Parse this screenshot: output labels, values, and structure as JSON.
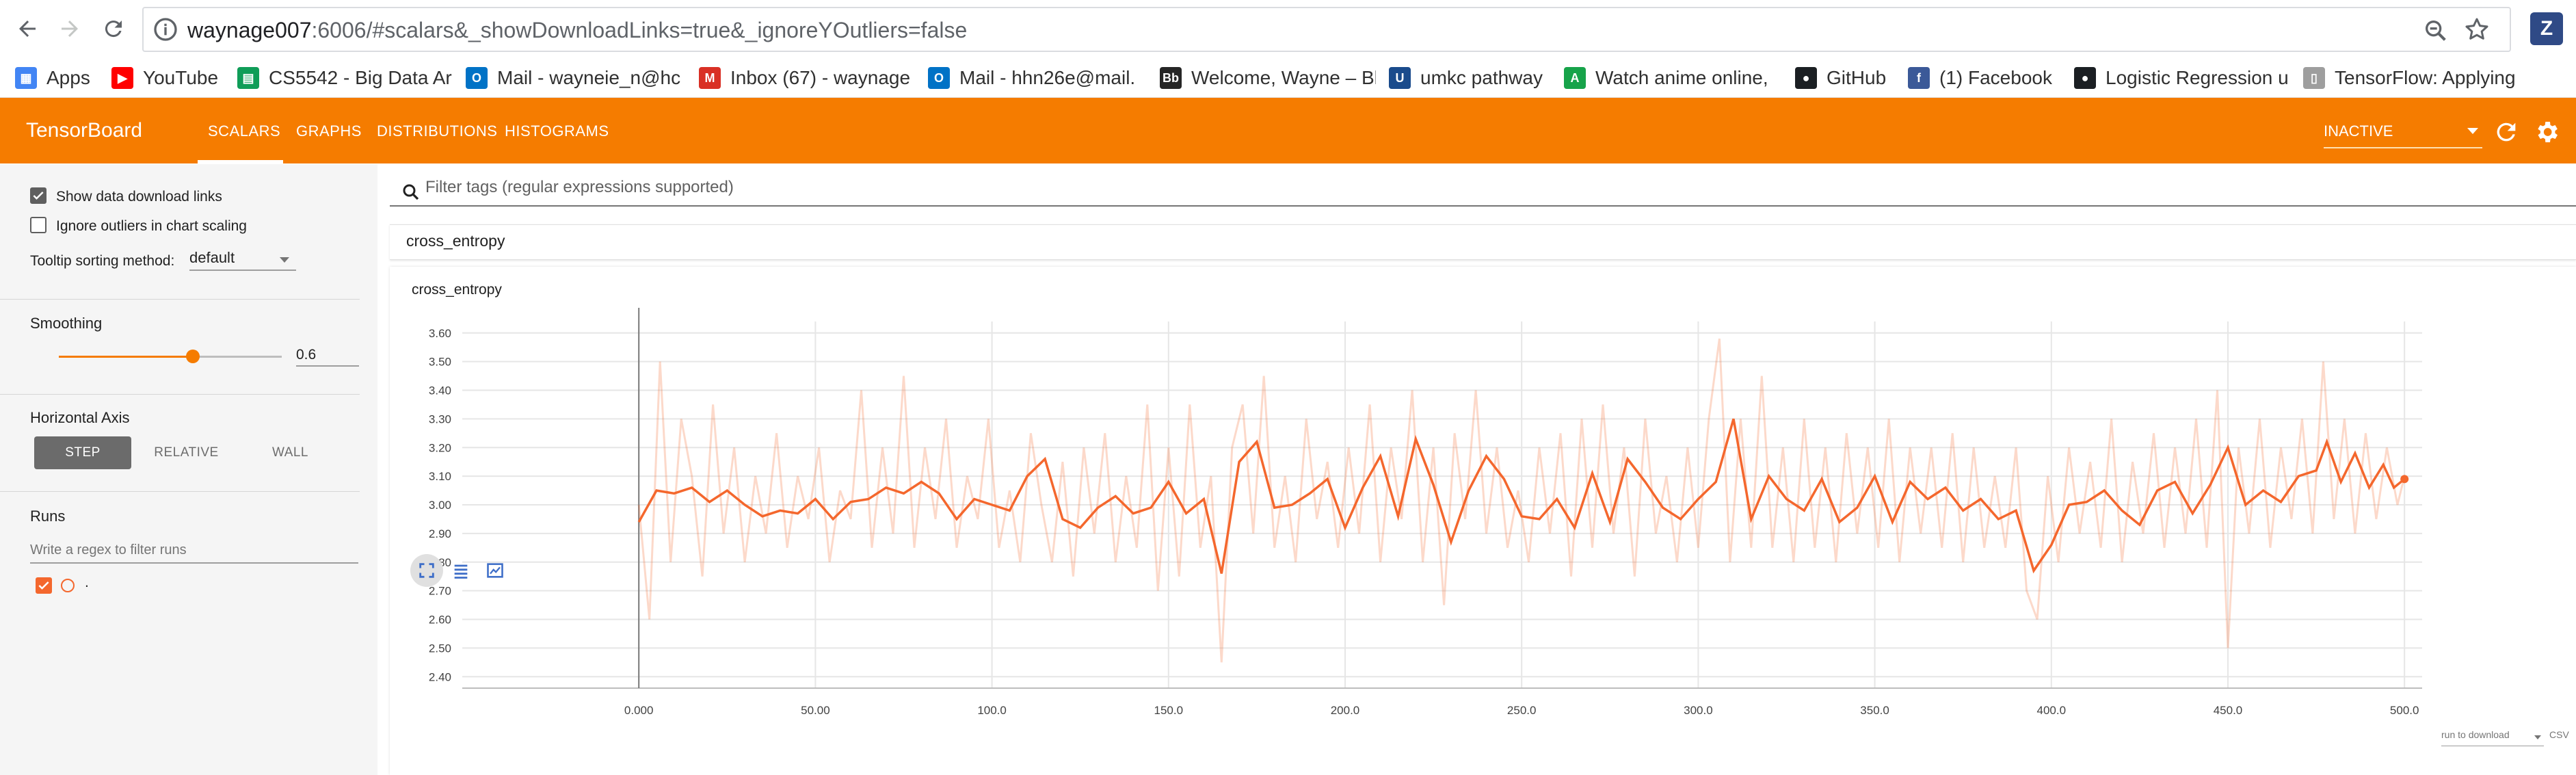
{
  "browser": {
    "url_host": "waynage007",
    "url_rest": ":6006/#scalars&_showDownloadLinks=true&_ignoreYOutliers=false",
    "extension_label": "Z",
    "bookmarks": [
      {
        "label": "Apps",
        "icon": "apps-grid-icon",
        "color": "#4285f4"
      },
      {
        "label": "YouTube",
        "icon": "youtube-icon",
        "color": "#ff0000"
      },
      {
        "label": "CS5542 - Big Data Ar",
        "icon": "sheets-icon",
        "color": "#0f9d58"
      },
      {
        "label": "Mail - wayneie_n@hc",
        "icon": "outlook-icon",
        "color": "#0072c6"
      },
      {
        "label": "Inbox (67) - waynage",
        "icon": "gmail-icon",
        "color": "#d93025"
      },
      {
        "label": "Mail - hhn26e@mail.",
        "icon": "outlook-icon",
        "color": "#0072c6"
      },
      {
        "label": "Welcome, Wayne – Bl",
        "icon": "blackboard-icon",
        "color": "#262626"
      },
      {
        "label": "umkc pathway",
        "icon": "umkc-icon",
        "color": "#1a4b8c"
      },
      {
        "label": "Watch anime online, ",
        "icon": "anime-site-icon",
        "color": "#17a34a"
      },
      {
        "label": "GitHub",
        "icon": "github-icon",
        "color": "#1b1f23"
      },
      {
        "label": "(1) Facebook",
        "icon": "facebook-icon",
        "color": "#3b5998"
      },
      {
        "label": "Logistic Regression u",
        "icon": "github-icon",
        "color": "#1b1f23"
      },
      {
        "label": "TensorFlow: Applying",
        "icon": "page-icon",
        "color": "#9e9e9e"
      }
    ]
  },
  "header": {
    "title": "TensorBoard",
    "tabs": [
      "SCALARS",
      "GRAPHS",
      "DISTRIBUTIONS",
      "HISTOGRAMS"
    ],
    "active_tab": "SCALARS",
    "run_status": "INACTIVE",
    "brand_color": "#f57c00"
  },
  "sidebar": {
    "show_download_links": {
      "label": "Show data download links",
      "checked": true
    },
    "ignore_outliers": {
      "label": "Ignore outliers in chart scaling",
      "checked": false
    },
    "tooltip_sorting": {
      "label": "Tooltip sorting method:",
      "value": "default"
    },
    "smoothing": {
      "label": "Smoothing",
      "value": "0.6",
      "fraction": 0.6
    },
    "horizontal_axis": {
      "label": "Horizontal Axis",
      "options": [
        "STEP",
        "RELATIVE",
        "WALL"
      ],
      "selected": "STEP"
    },
    "runs": {
      "label": "Runs",
      "filter_placeholder": "Write a regex to filter runs",
      "run_name": ".",
      "run_color": "#f4672d"
    }
  },
  "main": {
    "filter_placeholder": "Filter tags (regular expressions supported)",
    "category": "cross_entropy",
    "card_title": "cross_entropy",
    "download_select": "run to download",
    "download_format": "CSV"
  },
  "chart_data": {
    "type": "line",
    "title": "cross_entropy",
    "xlabel": "",
    "ylabel": "",
    "x_ticks": [
      "0.000",
      "50.00",
      "100.0",
      "150.0",
      "200.0",
      "250.0",
      "300.0",
      "350.0",
      "400.0",
      "450.0",
      "500.0"
    ],
    "y_ticks": [
      "2.40",
      "2.50",
      "2.60",
      "2.70",
      "2.80",
      "2.90",
      "3.00",
      "3.10",
      "3.20",
      "3.30",
      "3.40",
      "3.50",
      "3.60"
    ],
    "xlim": [
      -50,
      505
    ],
    "ylim": [
      2.36,
      3.64
    ],
    "grid": true,
    "series": [
      {
        "name": ".",
        "color": "#f4672d",
        "smoothed": [
          [
            0,
            2.94
          ],
          [
            5,
            3.05
          ],
          [
            10,
            3.04
          ],
          [
            15,
            3.06
          ],
          [
            20,
            3.01
          ],
          [
            25,
            3.05
          ],
          [
            30,
            3.0
          ],
          [
            35,
            2.96
          ],
          [
            40,
            2.98
          ],
          [
            45,
            2.97
          ],
          [
            50,
            3.02
          ],
          [
            55,
            2.95
          ],
          [
            60,
            3.01
          ],
          [
            65,
            3.02
          ],
          [
            70,
            3.06
          ],
          [
            75,
            3.04
          ],
          [
            80,
            3.08
          ],
          [
            85,
            3.04
          ],
          [
            90,
            2.95
          ],
          [
            95,
            3.02
          ],
          [
            100,
            3.0
          ],
          [
            105,
            2.98
          ],
          [
            110,
            3.1
          ],
          [
            115,
            3.16
          ],
          [
            120,
            2.95
          ],
          [
            125,
            2.92
          ],
          [
            130,
            2.99
          ],
          [
            135,
            3.03
          ],
          [
            140,
            2.97
          ],
          [
            145,
            2.99
          ],
          [
            150,
            3.08
          ],
          [
            155,
            2.97
          ],
          [
            160,
            3.02
          ],
          [
            165,
            2.76
          ],
          [
            170,
            3.15
          ],
          [
            175,
            3.22
          ],
          [
            180,
            2.99
          ],
          [
            185,
            3.0
          ],
          [
            190,
            3.04
          ],
          [
            195,
            3.09
          ],
          [
            200,
            2.92
          ],
          [
            205,
            3.06
          ],
          [
            210,
            3.17
          ],
          [
            215,
            2.96
          ],
          [
            220,
            3.23
          ],
          [
            225,
            3.07
          ],
          [
            230,
            2.87
          ],
          [
            235,
            3.05
          ],
          [
            240,
            3.17
          ],
          [
            245,
            3.09
          ],
          [
            250,
            2.96
          ],
          [
            255,
            2.95
          ],
          [
            260,
            3.02
          ],
          [
            265,
            2.92
          ],
          [
            270,
            3.11
          ],
          [
            275,
            2.94
          ],
          [
            280,
            3.16
          ],
          [
            285,
            3.08
          ],
          [
            290,
            2.99
          ],
          [
            295,
            2.95
          ],
          [
            300,
            3.02
          ],
          [
            305,
            3.08
          ],
          [
            310,
            3.3
          ],
          [
            315,
            2.95
          ],
          [
            320,
            3.1
          ],
          [
            325,
            3.02
          ],
          [
            330,
            2.98
          ],
          [
            335,
            3.09
          ],
          [
            340,
            2.94
          ],
          [
            345,
            2.99
          ],
          [
            350,
            3.1
          ],
          [
            355,
            2.94
          ],
          [
            360,
            3.08
          ],
          [
            365,
            3.02
          ],
          [
            370,
            3.06
          ],
          [
            375,
            2.98
          ],
          [
            380,
            3.02
          ],
          [
            385,
            2.95
          ],
          [
            390,
            2.98
          ],
          [
            395,
            2.77
          ],
          [
            400,
            2.86
          ],
          [
            405,
            3.0
          ],
          [
            410,
            3.01
          ],
          [
            415,
            3.05
          ],
          [
            420,
            2.98
          ],
          [
            425,
            2.93
          ],
          [
            430,
            3.05
          ],
          [
            435,
            3.08
          ],
          [
            440,
            2.97
          ],
          [
            445,
            3.07
          ],
          [
            450,
            3.2
          ],
          [
            455,
            3.0
          ],
          [
            460,
            3.05
          ],
          [
            465,
            3.01
          ],
          [
            470,
            3.1
          ],
          [
            475,
            3.12
          ],
          [
            478,
            3.22
          ],
          [
            482,
            3.08
          ],
          [
            486,
            3.18
          ],
          [
            490,
            3.06
          ],
          [
            494,
            3.14
          ],
          [
            497,
            3.06
          ],
          [
            500,
            3.09
          ]
        ],
        "raw": [
          [
            0,
            3.0
          ],
          [
            3,
            2.6
          ],
          [
            6,
            3.5
          ],
          [
            9,
            2.8
          ],
          [
            12,
            3.3
          ],
          [
            15,
            3.1
          ],
          [
            18,
            2.75
          ],
          [
            21,
            3.35
          ],
          [
            24,
            2.9
          ],
          [
            27,
            3.2
          ],
          [
            30,
            2.8
          ],
          [
            33,
            3.1
          ],
          [
            36,
            2.9
          ],
          [
            39,
            3.25
          ],
          [
            42,
            2.85
          ],
          [
            45,
            3.1
          ],
          [
            48,
            2.95
          ],
          [
            51,
            3.2
          ],
          [
            54,
            2.8
          ],
          [
            57,
            3.05
          ],
          [
            60,
            2.95
          ],
          [
            63,
            3.4
          ],
          [
            66,
            2.85
          ],
          [
            69,
            3.2
          ],
          [
            72,
            2.9
          ],
          [
            75,
            3.45
          ],
          [
            78,
            2.85
          ],
          [
            81,
            3.2
          ],
          [
            84,
            2.95
          ],
          [
            87,
            3.3
          ],
          [
            90,
            2.85
          ],
          [
            93,
            3.1
          ],
          [
            96,
            2.95
          ],
          [
            99,
            3.3
          ],
          [
            102,
            2.85
          ],
          [
            105,
            3.05
          ],
          [
            108,
            2.8
          ],
          [
            111,
            3.25
          ],
          [
            114,
            3.0
          ],
          [
            117,
            2.8
          ],
          [
            120,
            3.15
          ],
          [
            123,
            2.75
          ],
          [
            126,
            3.2
          ],
          [
            129,
            2.9
          ],
          [
            132,
            3.25
          ],
          [
            135,
            2.8
          ],
          [
            138,
            3.1
          ],
          [
            141,
            2.85
          ],
          [
            144,
            3.35
          ],
          [
            147,
            2.7
          ],
          [
            150,
            3.2
          ],
          [
            153,
            2.75
          ],
          [
            156,
            3.35
          ],
          [
            159,
            2.85
          ],
          [
            162,
            3.1
          ],
          [
            165,
            2.45
          ],
          [
            168,
            3.2
          ],
          [
            171,
            3.35
          ],
          [
            174,
            2.9
          ],
          [
            177,
            3.45
          ],
          [
            180,
            2.85
          ],
          [
            183,
            3.1
          ],
          [
            186,
            2.8
          ],
          [
            189,
            3.3
          ],
          [
            192,
            2.95
          ],
          [
            195,
            3.15
          ],
          [
            198,
            2.85
          ],
          [
            201,
            3.2
          ],
          [
            204,
            2.9
          ],
          [
            207,
            3.35
          ],
          [
            210,
            2.8
          ],
          [
            213,
            3.2
          ],
          [
            216,
            2.95
          ],
          [
            219,
            3.4
          ],
          [
            222,
            2.8
          ],
          [
            225,
            3.2
          ],
          [
            228,
            2.65
          ],
          [
            231,
            3.25
          ],
          [
            234,
            2.95
          ],
          [
            237,
            3.4
          ],
          [
            240,
            2.9
          ],
          [
            243,
            3.2
          ],
          [
            246,
            2.85
          ],
          [
            249,
            3.05
          ],
          [
            252,
            2.8
          ],
          [
            255,
            3.2
          ],
          [
            258,
            2.9
          ],
          [
            261,
            3.25
          ],
          [
            264,
            2.75
          ],
          [
            267,
            3.3
          ],
          [
            270,
            2.85
          ],
          [
            273,
            3.35
          ],
          [
            276,
            2.9
          ],
          [
            279,
            3.2
          ],
          [
            282,
            2.75
          ],
          [
            285,
            3.3
          ],
          [
            288,
            2.9
          ],
          [
            291,
            3.1
          ],
          [
            294,
            2.8
          ],
          [
            297,
            3.2
          ],
          [
            300,
            2.85
          ],
          [
            303,
            3.3
          ],
          [
            306,
            3.58
          ],
          [
            309,
            2.8
          ],
          [
            312,
            3.3
          ],
          [
            315,
            2.85
          ],
          [
            318,
            3.45
          ],
          [
            321,
            2.85
          ],
          [
            324,
            3.2
          ],
          [
            327,
            2.8
          ],
          [
            330,
            3.3
          ],
          [
            333,
            2.85
          ],
          [
            336,
            3.2
          ],
          [
            339,
            2.8
          ],
          [
            342,
            3.25
          ],
          [
            345,
            2.9
          ],
          [
            348,
            3.2
          ],
          [
            351,
            2.85
          ],
          [
            354,
            3.3
          ],
          [
            357,
            2.8
          ],
          [
            360,
            3.2
          ],
          [
            363,
            2.9
          ],
          [
            366,
            3.2
          ],
          [
            369,
            2.85
          ],
          [
            372,
            3.25
          ],
          [
            375,
            2.8
          ],
          [
            378,
            3.2
          ],
          [
            381,
            2.85
          ],
          [
            384,
            3.1
          ],
          [
            387,
            2.85
          ],
          [
            390,
            3.2
          ],
          [
            393,
            2.7
          ],
          [
            396,
            2.6
          ],
          [
            399,
            3.1
          ],
          [
            402,
            2.8
          ],
          [
            405,
            3.2
          ],
          [
            408,
            2.9
          ],
          [
            411,
            3.15
          ],
          [
            414,
            2.85
          ],
          [
            417,
            3.3
          ],
          [
            420,
            2.8
          ],
          [
            423,
            3.15
          ],
          [
            426,
            2.9
          ],
          [
            429,
            3.25
          ],
          [
            432,
            2.85
          ],
          [
            435,
            3.2
          ],
          [
            438,
            2.9
          ],
          [
            441,
            3.3
          ],
          [
            444,
            2.85
          ],
          [
            447,
            3.4
          ],
          [
            450,
            2.5
          ],
          [
            453,
            3.2
          ],
          [
            456,
            2.9
          ],
          [
            459,
            3.3
          ],
          [
            462,
            2.85
          ],
          [
            465,
            3.2
          ],
          [
            468,
            2.95
          ],
          [
            471,
            3.3
          ],
          [
            474,
            2.9
          ],
          [
            477,
            3.5
          ],
          [
            480,
            2.95
          ],
          [
            483,
            3.3
          ],
          [
            486,
            2.9
          ],
          [
            489,
            3.25
          ],
          [
            492,
            2.95
          ],
          [
            495,
            3.2
          ],
          [
            498,
            3.0
          ],
          [
            500,
            3.1
          ]
        ]
      }
    ]
  }
}
